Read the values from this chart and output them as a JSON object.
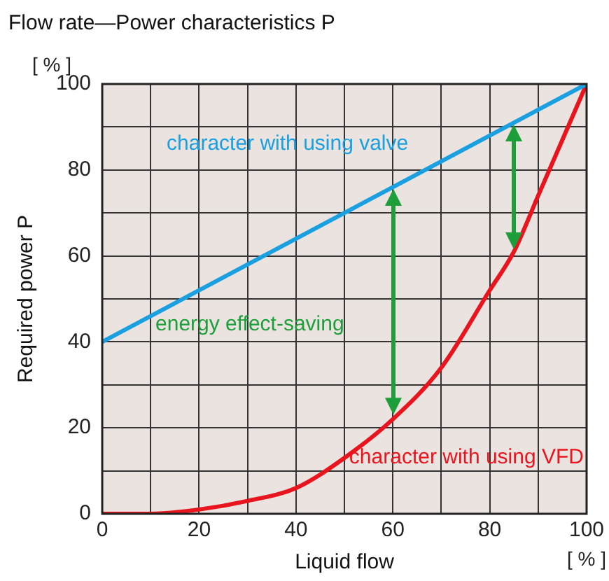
{
  "chart_data": {
    "type": "line",
    "title": "Flow rate—Power characteristics P",
    "xlabel": "Liquid flow",
    "ylabel": "Required power P",
    "annotations": [
      "[ % ]",
      "[ % ]",
      "energy effect-saving"
    ],
    "x": [
      0,
      10,
      20,
      30,
      40,
      50,
      60,
      70,
      80,
      85,
      90,
      100
    ],
    "series": [
      {
        "name": "character with using valve",
        "color": "#1aa0e0",
        "x": [
          0,
          100
        ],
        "values": [
          40,
          100
        ]
      },
      {
        "name": "character with using VFD",
        "color": "#e8141e",
        "values": [
          0,
          0,
          1,
          3,
          6,
          13,
          22,
          34,
          52,
          61,
          74,
          100
        ]
      }
    ],
    "xlim": [
      0,
      100
    ],
    "ylim": [
      0,
      100
    ],
    "xticks": [
      0,
      {
        "value": 10,
        "label": null
      },
      20,
      {
        "value": 30,
        "label": null
      },
      40,
      {
        "value": 50,
        "label": null
      },
      60,
      {
        "value": 70,
        "label": null
      },
      80,
      {
        "value": 90,
        "label": null
      },
      100
    ],
    "yticks": [
      0,
      {
        "value": 10,
        "label": null
      },
      20,
      {
        "value": 30,
        "label": null
      },
      40,
      {
        "value": 50,
        "label": null
      },
      60,
      {
        "value": 70,
        "label": null
      },
      80,
      {
        "value": 90,
        "label": null
      },
      100
    ],
    "grid": true,
    "legend": false,
    "marker": "none",
    "line_style": "solid"
  }
}
